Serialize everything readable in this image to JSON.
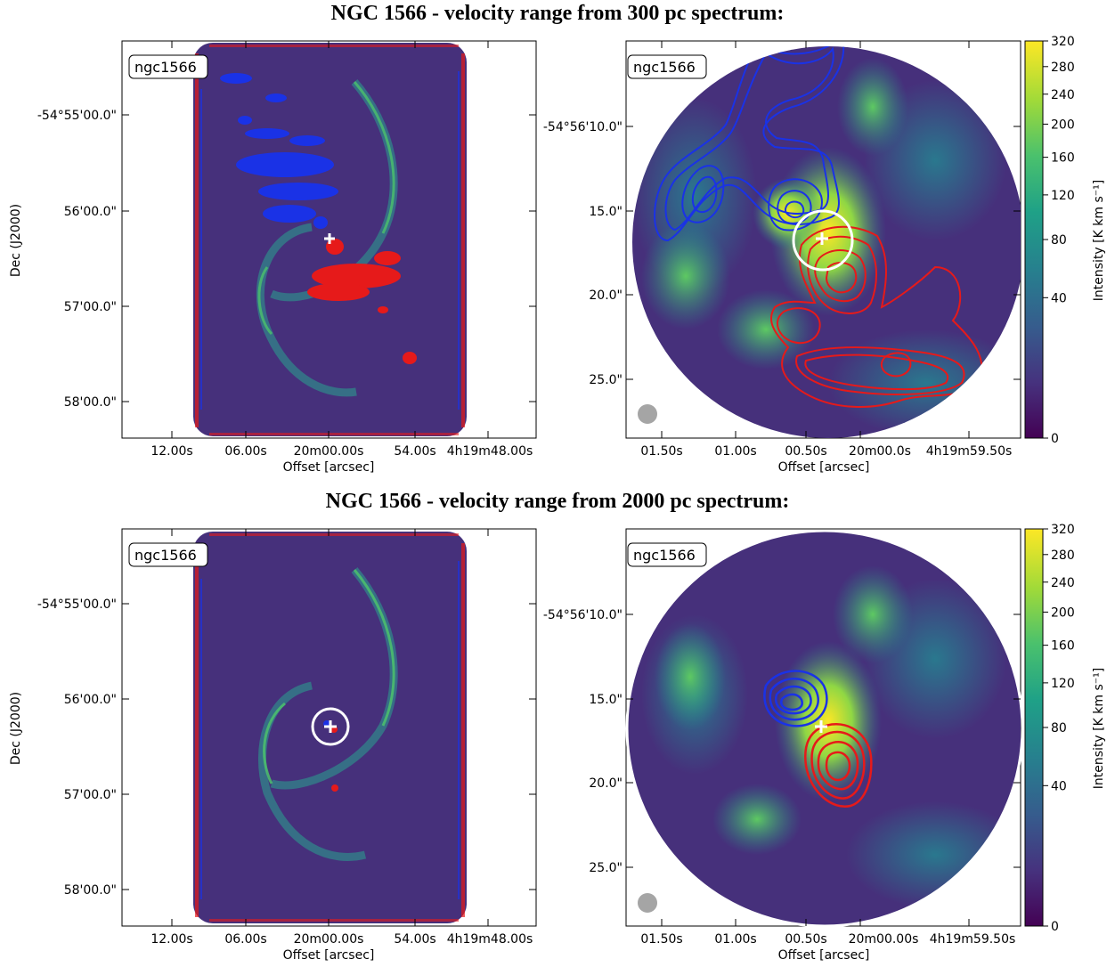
{
  "titles": {
    "row1": "NGC 1566 - velocity range from 300 pc spectrum:",
    "row2": "NGC 1566 - velocity range from 2000 pc spectrum:"
  },
  "chart_data": [
    {
      "type": "heatmap",
      "panel": "row1-left",
      "tag": "ngc1566",
      "xlabel": "Offset [arcsec]",
      "ylabel": "Dec (J2000)",
      "xtick_labels": [
        "12.00s",
        "06.00s",
        "20m00.00s",
        "54.00s",
        "4h19m48.00s"
      ],
      "ytick_labels": [
        "-54°55'00.0\"",
        "56'00.0\"",
        "57'00.0\"",
        "58'00.0\""
      ],
      "background_color": "#46307b",
      "blue_contour_color": "#1a32e6",
      "red_contour_color": "#e61a1a"
    },
    {
      "type": "heatmap",
      "panel": "row1-right",
      "tag": "ngc1566",
      "xlabel": "Offset [arcsec]",
      "ylabel": "",
      "xtick_labels": [
        "01.50s",
        "01.00s",
        "00.50s",
        "20m00.0s",
        "4h19m59.50s"
      ],
      "ytick_labels": [
        "-54°56'10.0\"",
        "15.0\"",
        "20.0\"",
        "25.0\""
      ],
      "colorbar_label": "Intensity [K km s⁻¹]",
      "colorbar_ticks": [
        "320",
        "280",
        "240",
        "200",
        "160",
        "120",
        "80",
        "40",
        "0"
      ],
      "colorbar_tick_values": [
        320,
        280,
        240,
        200,
        160,
        120,
        80,
        40,
        0
      ],
      "colorbar_max": 320
    },
    {
      "type": "heatmap",
      "panel": "row2-left",
      "tag": "ngc1566",
      "xlabel": "Offset [arcsec]",
      "ylabel": "Dec (J2000)",
      "xtick_labels": [
        "12.00s",
        "06.00s",
        "20m00.00s",
        "54.00s",
        "4h19m48.00s"
      ],
      "ytick_labels": [
        "-54°55'00.0\"",
        "56'00.0\"",
        "57'00.0\"",
        "58'00.0\""
      ]
    },
    {
      "type": "heatmap",
      "panel": "row2-right",
      "tag": "ngc1566",
      "xlabel": "Offset [arcsec]",
      "ylabel": "",
      "xtick_labels": [
        "01.50s",
        "01.00s",
        "00.50s",
        "20m00.00s",
        "4h19m59.50s"
      ],
      "ytick_labels": [
        "-54°56'10.0\"",
        "15.0\"",
        "20.0\"",
        "25.0\""
      ],
      "colorbar_label": "Intensity [K km s⁻¹]",
      "colorbar_ticks": [
        "320",
        "280",
        "240",
        "200",
        "160",
        "120",
        "80",
        "40",
        "0"
      ],
      "colorbar_tick_values": [
        320,
        280,
        240,
        200,
        160,
        120,
        80,
        40,
        0
      ],
      "colorbar_max": 320
    }
  ],
  "colormap": [
    "#440154",
    "#46327e",
    "#365c8d",
    "#277f8e",
    "#1fa187",
    "#4ac16d",
    "#a0da39",
    "#fde725"
  ]
}
